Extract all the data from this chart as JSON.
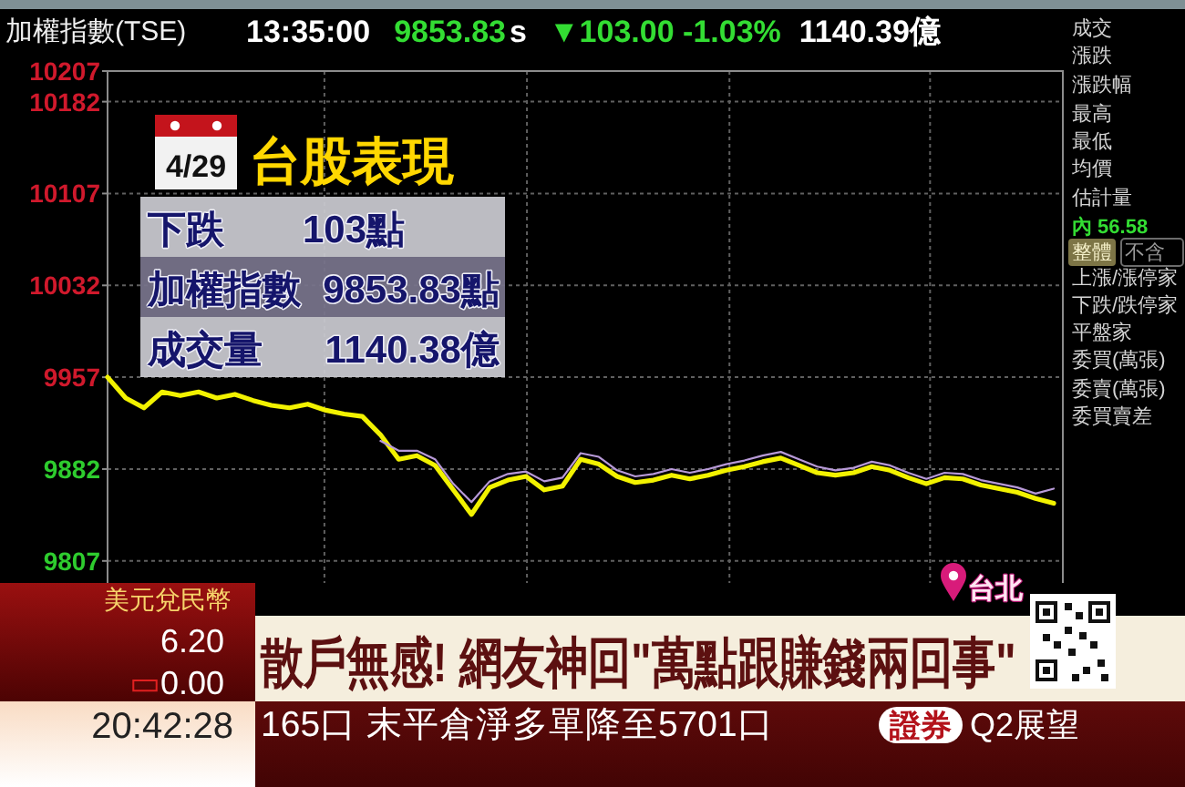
{
  "chart_data": [
    {
      "type": "line",
      "title": "加權指數(TSE)",
      "annotations": [
        "13:35:00",
        "9853.83",
        "s",
        "▼103.00 -1.03%",
        "1140.39億"
      ],
      "categories": [
        null,
        null,
        null,
        null,
        null,
        null,
        null,
        null,
        null,
        null,
        null,
        null,
        null,
        null,
        null,
        null,
        null,
        null,
        null,
        null,
        null,
        null,
        null,
        null,
        null,
        null,
        null,
        null,
        null,
        null,
        null,
        null,
        null,
        null,
        null,
        null,
        null,
        null,
        null,
        null,
        null,
        null,
        null,
        null,
        null,
        null,
        null,
        null,
        null,
        null,
        null,
        null,
        null
      ],
      "series": [
        {
          "color": "#f2f200",
          "values": [
            9957,
            9940,
            9932,
            9945,
            9942,
            9945,
            9940,
            9943,
            9938,
            9934,
            9932,
            9935,
            9930,
            9927,
            9925,
            9910,
            9890,
            9893,
            9885,
            9865,
            9845,
            9867,
            9873,
            9876,
            9865,
            9868,
            9890,
            9886,
            9876,
            9871,
            9873,
            9877,
            9874,
            9877,
            9881,
            9884,
            9888,
            9891,
            9885,
            9879,
            9877,
            9879,
            9884,
            9881,
            9875,
            9870,
            9875,
            9874,
            9869,
            9866,
            9863,
            9858,
            9854
          ]
        },
        {
          "color": "#b89ad8",
          "values": [
            null,
            null,
            null,
            null,
            null,
            null,
            null,
            null,
            null,
            null,
            null,
            null,
            null,
            null,
            null,
            9905,
            9897,
            9897,
            9890,
            9870,
            9855,
            9872,
            9878,
            9880,
            9872,
            9875,
            9895,
            9892,
            9881,
            9876,
            9878,
            9882,
            9879,
            9882,
            9886,
            9889,
            9893,
            9896,
            9890,
            9884,
            9881,
            9883,
            9888,
            9885,
            9879,
            9874,
            9879,
            9878,
            9873,
            9870,
            9867,
            9862,
            9866
          ]
        }
      ],
      "ylim": [
        9789,
        10207
      ],
      "yticks": [
        9807,
        9882,
        9957,
        10032,
        10107,
        10182,
        10207
      ],
      "grid": true
    },
    {
      "type": "other",
      "annotations": [
        "成交",
        "漲跌",
        "漲跌幅",
        "最高",
        "最低",
        "均價",
        "估計量",
        "內 56.58",
        "整體",
        "不含",
        "上漲/漲停家",
        "下跌/跌停家",
        "平盤家",
        "委買(萬張)",
        "委賣(萬張)",
        "委買賣差"
      ]
    },
    {
      "type": "other",
      "title": "台股表現",
      "annotations": [
        "4/29",
        "下跌",
        "103點",
        "加權指數",
        "9853.83點",
        "成交量",
        "1140.38億"
      ]
    },
    {
      "type": "other",
      "annotations": [
        "美元兌民幣",
        "6.20",
        "▭0.00",
        "散戶無感! 網友神回\"萬點跟賺錢兩回事\"",
        "台北",
        "20:42:28",
        "165口 末平倉淨多單降至5701口",
        "證券",
        "Q2展望"
      ]
    }
  ]
}
